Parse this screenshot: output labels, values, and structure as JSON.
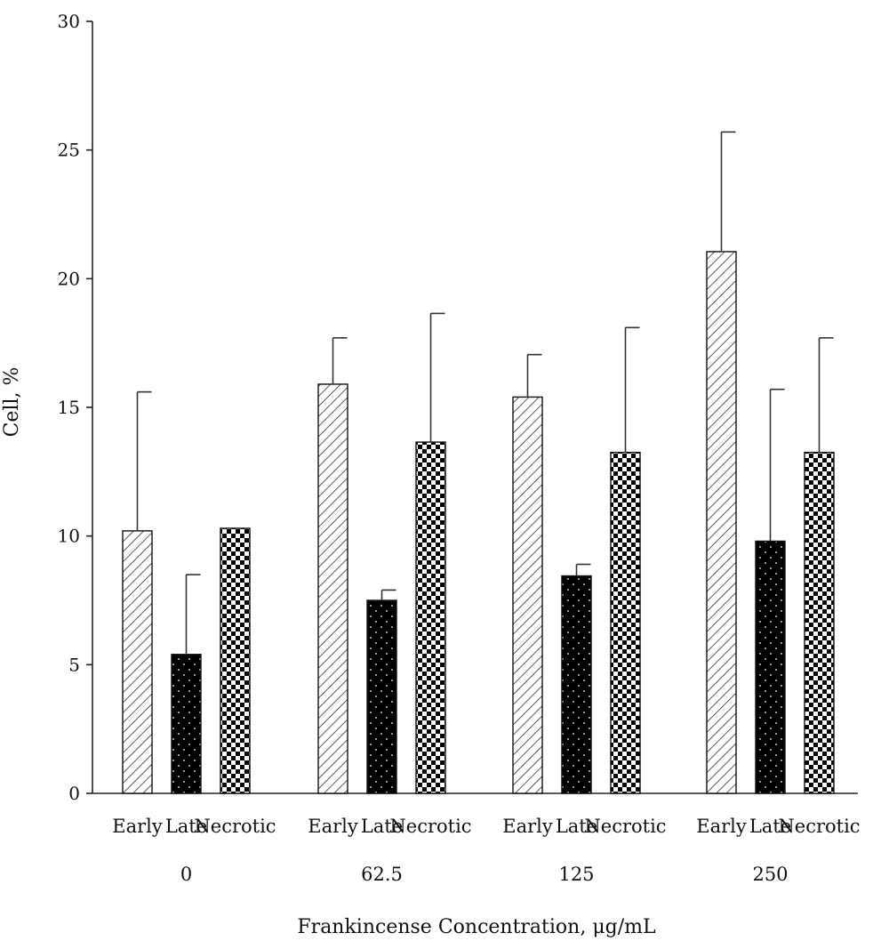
{
  "chart_data": {
    "type": "bar",
    "ylabel": "Cell, %",
    "xlabel": "Frankincense Concentration, μg/mL",
    "ylim": [
      0,
      30
    ],
    "yticks": [
      0,
      5,
      10,
      15,
      20,
      25,
      30
    ],
    "grid": false,
    "legend": "none",
    "categories": [
      "Early",
      "Late",
      "Necrotic"
    ],
    "groups": [
      {
        "label": "0",
        "values": [
          10.2,
          5.4,
          10.3
        ],
        "errors": [
          5.4,
          3.1,
          0.0
        ]
      },
      {
        "label": "62.5",
        "values": [
          15.9,
          7.5,
          13.65
        ],
        "errors": [
          1.8,
          0.4,
          5.0
        ]
      },
      {
        "label": "125",
        "values": [
          15.4,
          8.45,
          13.25
        ],
        "errors": [
          1.65,
          0.45,
          4.85
        ]
      },
      {
        "label": "250",
        "values": [
          21.05,
          9.8,
          13.25
        ],
        "errors": [
          4.65,
          5.9,
          4.45
        ]
      }
    ],
    "bar_styles": [
      {
        "category": "Early",
        "pattern": "diagonal-hatch",
        "color": "#ffffff",
        "ink": "#333333"
      },
      {
        "category": "Late",
        "pattern": "black-with-white-dots",
        "color": "#000000",
        "ink": "#ffffff"
      },
      {
        "category": "Necrotic",
        "pattern": "checkerboard",
        "color": "#ffffff",
        "ink": "#000000"
      }
    ]
  }
}
